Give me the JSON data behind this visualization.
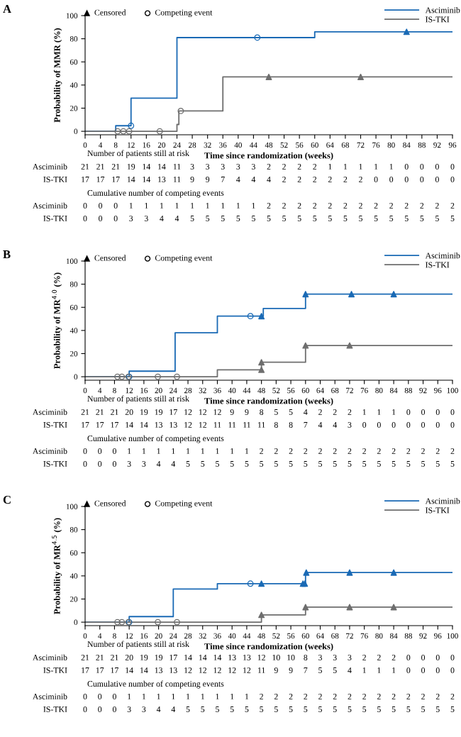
{
  "chart_data": [
    {
      "type": "step",
      "title": "A",
      "xlabel": "Time since randomization (weeks)",
      "ylabel": "Probability of MMR (%)",
      "xlim": [
        0,
        96
      ],
      "xticks": [
        0,
        4,
        8,
        12,
        16,
        20,
        24,
        28,
        32,
        36,
        40,
        44,
        48,
        52,
        56,
        60,
        64,
        68,
        72,
        76,
        80,
        84,
        88,
        92,
        96
      ],
      "ylim": [
        -3,
        100
      ],
      "yticks": [
        0,
        20,
        40,
        60,
        80,
        100
      ],
      "legend": "top right",
      "grid": false,
      "series": [
        {
          "name": "Asciminib",
          "color": "#1a6ab5",
          "x": [
            0,
            8,
            12,
            24,
            60,
            96
          ],
          "values": [
            0,
            4.8,
            28.6,
            81,
            86,
            86
          ]
        },
        {
          "name": "IS-TKI",
          "color": "#6e6e6e",
          "x": [
            0,
            24,
            24.5,
            36,
            96
          ],
          "values": [
            0,
            5.9,
            17.6,
            47,
            47
          ]
        },
        {
          "type": "scatter",
          "marker": "triangle",
          "x": [
            84,
            48,
            72
          ],
          "values": [
            86,
            47,
            47
          ],
          "colors": [
            "#1a6ab5",
            "#6e6e6e",
            "#6e6e6e"
          ]
        },
        {
          "type": "scatter",
          "marker": "circle",
          "x": [
            12,
            45,
            8.5,
            10,
            11.5,
            19.5,
            25
          ],
          "values": [
            4.8,
            81,
            0,
            0,
            0,
            0,
            17.6
          ],
          "colors": [
            "#1a6ab5",
            "#1a6ab5",
            "#6e6e6e",
            "#6e6e6e",
            "#6e6e6e",
            "#6e6e6e",
            "#6e6e6e"
          ]
        }
      ],
      "annotations": [
        "Censored",
        "Competing event",
        "Number of patients still at risk",
        "Asciminib",
        "21 21 21 19 14 14 11 3 3 3 3 3 2 2 2 2 1 1 1 1 1 0 0 0 0",
        "IS-TKI",
        "17 17 17 14 14 13 11 9 9 7 4 4 4 2 2 2 2 2 2 0 0 0 0 0 0",
        "Cumulative number of competing events",
        "Asciminib",
        "0 0 0 1 1 1 1 1 1 1 1 1 2 2 2 2 2 2 2 2 2 2 2 2 2",
        "IS-TKI",
        "0 0 0 3 3 4 4 5 5 5 5 5 5 5 5 5 5 5 5 5 5 5 5 5 5"
      ]
    },
    {
      "type": "step",
      "title": "B",
      "xlabel": "Time since randomization (weeks)",
      "ylabel": "Probability of MR$^{4.0}$ (%)",
      "xlim": [
        0,
        100
      ],
      "xticks": [
        0,
        4,
        8,
        12,
        16,
        20,
        24,
        28,
        32,
        36,
        40,
        44,
        48,
        52,
        56,
        60,
        64,
        68,
        72,
        76,
        80,
        84,
        88,
        92,
        96,
        100
      ],
      "ylim": [
        -3,
        100
      ],
      "yticks": [
        0,
        20,
        40,
        60,
        80,
        100
      ],
      "legend": "top right",
      "grid": false,
      "series": [
        {
          "name": "Asciminib",
          "color": "#1a6ab5",
          "x": [
            0,
            12,
            24.5,
            36,
            48.5,
            60,
            100
          ],
          "values": [
            0,
            4.8,
            38,
            52.4,
            59,
            71.4,
            71.4
          ]
        },
        {
          "name": "IS-TKI",
          "color": "#6e6e6e",
          "x": [
            0,
            36,
            48,
            60,
            100
          ],
          "values": [
            0,
            6,
            12.5,
            27,
            27
          ]
        },
        {
          "type": "scatter",
          "marker": "triangle",
          "x": [
            48,
            60,
            72.5,
            84,
            48,
            48,
            60,
            72
          ],
          "values": [
            52.4,
            71.4,
            71.4,
            71.4,
            6,
            12.5,
            27,
            27
          ],
          "colors": [
            "#1a6ab5",
            "#1a6ab5",
            "#1a6ab5",
            "#1a6ab5",
            "#6e6e6e",
            "#6e6e6e",
            "#6e6e6e",
            "#6e6e6e"
          ]
        },
        {
          "type": "scatter",
          "marker": "circle",
          "x": [
            12,
            45,
            8.8,
            10,
            11.8,
            19.8,
            25
          ],
          "values": [
            0,
            52.4,
            0,
            0,
            0,
            0,
            0
          ],
          "colors": [
            "#1a6ab5",
            "#1a6ab5",
            "#6e6e6e",
            "#6e6e6e",
            "#6e6e6e",
            "#6e6e6e",
            "#6e6e6e"
          ]
        }
      ],
      "annotations": [
        "Censored",
        "Competing event",
        "Number of patients still at risk",
        "Asciminib",
        "21 21 21 20 19 19 17 12 12 12 9 9 8 5 5 4 2 2 2 1 1 1 0 0 0 0",
        "IS-TKI",
        "17 17 17 14 14 13 13 12 12 11 11 11 11 8 8 7 4 4 3 0 0 0 0 0 0 0",
        "Cumulative number of competing events",
        "Asciminib",
        "0 0 0 1 1 1 1 1 1 1 1 1 2 2 2 2 2 2 2 2 2 2 2 2 2 2",
        "IS-TKI",
        "0 0 0 3 3 4 4 5 5 5 5 5 5 5 5 5 5 5 5 5 5 5 5 5 5 5"
      ]
    },
    {
      "type": "step",
      "title": "C",
      "xlabel": "Time since randomization (weeks)",
      "ylabel": "Probability of MR$^{4.5}$ (%)",
      "xlim": [
        0,
        100
      ],
      "xticks": [
        0,
        4,
        8,
        12,
        16,
        20,
        24,
        28,
        32,
        36,
        40,
        44,
        48,
        52,
        56,
        60,
        64,
        68,
        72,
        76,
        80,
        84,
        88,
        92,
        96,
        100
      ],
      "ylim": [
        -3,
        100
      ],
      "yticks": [
        0,
        20,
        40,
        60,
        80,
        100
      ],
      "legend": "top right",
      "grid": false,
      "series": [
        {
          "name": "Asciminib",
          "color": "#1a6ab5",
          "x": [
            0,
            12,
            24,
            36,
            60,
            100
          ],
          "values": [
            0,
            4.8,
            28.6,
            33.3,
            42.9,
            42.9
          ]
        },
        {
          "name": "IS-TKI",
          "color": "#6e6e6e",
          "x": [
            0,
            48,
            60,
            100
          ],
          "values": [
            0,
            6.3,
            13,
            13
          ]
        },
        {
          "type": "scatter",
          "marker": "triangle",
          "x": [
            48,
            59.3,
            59.8,
            60.2,
            72,
            84,
            48,
            60,
            72,
            84
          ],
          "values": [
            33.3,
            33.3,
            33.3,
            42.9,
            42.9,
            42.9,
            6.3,
            13,
            13,
            13
          ],
          "colors": [
            "#1a6ab5",
            "#1a6ab5",
            "#1a6ab5",
            "#1a6ab5",
            "#1a6ab5",
            "#1a6ab5",
            "#6e6e6e",
            "#6e6e6e",
            "#6e6e6e",
            "#6e6e6e"
          ]
        },
        {
          "type": "scatter",
          "marker": "circle",
          "x": [
            12,
            45,
            8.8,
            10,
            11.8,
            19.8,
            25
          ],
          "values": [
            0,
            33.3,
            0,
            0,
            0,
            0,
            0
          ],
          "colors": [
            "#1a6ab5",
            "#1a6ab5",
            "#6e6e6e",
            "#6e6e6e",
            "#6e6e6e",
            "#6e6e6e",
            "#6e6e6e"
          ]
        }
      ],
      "annotations": [
        "Censored",
        "Competing event",
        "Number of patients still at risk",
        "Asciminib",
        "21 21 21 20 19 19 17 14 14 14 13 13 12 10 10 8 3 3 3 2 2 2 0 0 0 0",
        "IS-TKI",
        "17 17 17 14 14 13 13 12 12 12 12 12 11 9 9 7 5 5 4 1 1 1 0 0 0 0",
        "Cumulative number of competing events",
        "Asciminib",
        "0 0 0 1 1 1 1 1 1 1 1 1 2 2 2 2 2 2 2 2 2 2 2 2 2 2",
        "IS-TKI",
        "0 0 0 3 3 4 4 5 5 5 5 5 5 5 5 5 5 5 5 5 5 5 5 5 5 5"
      ]
    }
  ]
}
